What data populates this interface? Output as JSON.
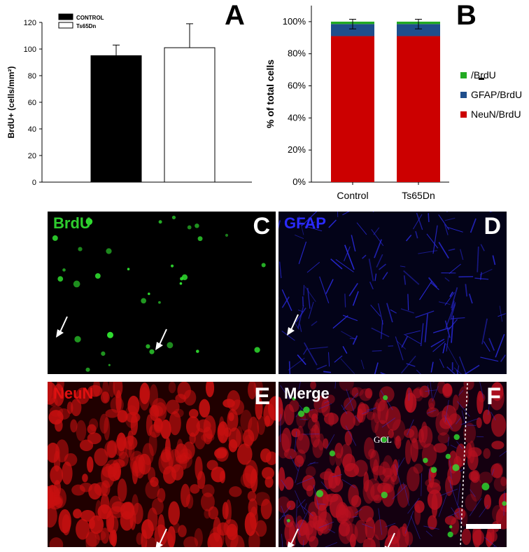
{
  "colors": {
    "control_bar": "#000000",
    "ts65dn_bar": "#ffffff",
    "neun": "#cc0000",
    "gfap": "#1f4e8c",
    "brdu_only": "#22aa22",
    "brdu_text": "#2ecc2e",
    "gfap_text": "#2a2aff",
    "neun_text": "#e01010"
  },
  "panels": {
    "a": "A",
    "b": "B",
    "c": "C",
    "d": "D",
    "e": "E",
    "f": "F"
  },
  "chart_data": [
    {
      "type": "bar",
      "panel": "A",
      "ylabel": "BrdU+ (cells/mm²)",
      "ylim": [
        0,
        120
      ],
      "yticks": [
        "0",
        "20",
        "40",
        "60",
        "80",
        "100",
        "120"
      ],
      "legend": [
        "CONTROL",
        "Ts65Dn"
      ],
      "legend_placement": "top-left",
      "categories": [
        "CONTROL",
        "Ts65Dn"
      ],
      "values": [
        95,
        101
      ],
      "errors": [
        8,
        18
      ]
    },
    {
      "type": "bar",
      "stacked": true,
      "panel": "B",
      "ylabel": "% of total cells",
      "ylim": [
        0,
        100
      ],
      "yticks": [
        "0%",
        "20%",
        "40%",
        "60%",
        "80%",
        "100%"
      ],
      "categories": [
        "Control",
        "Ts65Dn"
      ],
      "legend_placement": "right",
      "series": [
        {
          "name": "NeuN/BrdU",
          "values": [
            91,
            91
          ]
        },
        {
          "name": "GFAP/BrdU",
          "values": [
            7.5,
            7.5
          ]
        },
        {
          "name": "/BrdU",
          "values": [
            1.5,
            1.5
          ]
        }
      ],
      "errors": [
        3,
        3
      ]
    }
  ],
  "micrographs": {
    "c_label": "BrdU",
    "d_label": "GFAP",
    "e_label": "NeuN",
    "f_label": "Merge",
    "f_region": "GCL"
  }
}
